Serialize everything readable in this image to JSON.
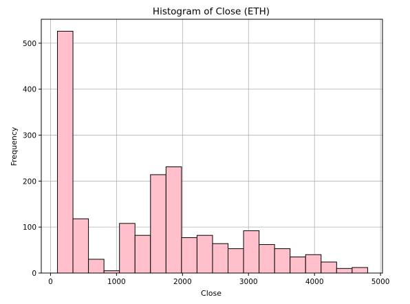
{
  "chart_data": {
    "type": "bar",
    "subtype": "histogram",
    "title": "Histogram of Close (ETH)",
    "xlabel": "Close",
    "ylabel": "Frequency",
    "xlim": [
      -140,
      5030
    ],
    "ylim": [
      0,
      552
    ],
    "xticks": [
      0,
      1000,
      2000,
      3000,
      4000,
      5000
    ],
    "yticks": [
      0,
      100,
      200,
      300,
      400,
      500
    ],
    "grid": true,
    "bar_color": "#ffc0cb",
    "edge_color": "#000000",
    "bins": [
      {
        "x0": 105,
        "x1": 340,
        "value": 526
      },
      {
        "x0": 340,
        "x1": 575,
        "value": 118
      },
      {
        "x0": 575,
        "x1": 810,
        "value": 30
      },
      {
        "x0": 810,
        "x1": 1045,
        "value": 5
      },
      {
        "x0": 1045,
        "x1": 1280,
        "value": 108
      },
      {
        "x0": 1280,
        "x1": 1515,
        "value": 82
      },
      {
        "x0": 1515,
        "x1": 1750,
        "value": 214
      },
      {
        "x0": 1750,
        "x1": 1985,
        "value": 231
      },
      {
        "x0": 1985,
        "x1": 2220,
        "value": 77
      },
      {
        "x0": 2220,
        "x1": 2455,
        "value": 82
      },
      {
        "x0": 2455,
        "x1": 2690,
        "value": 64
      },
      {
        "x0": 2690,
        "x1": 2925,
        "value": 53
      },
      {
        "x0": 2925,
        "x1": 3160,
        "value": 92
      },
      {
        "x0": 3160,
        "x1": 3395,
        "value": 62
      },
      {
        "x0": 3395,
        "x1": 3630,
        "value": 53
      },
      {
        "x0": 3630,
        "x1": 3865,
        "value": 35
      },
      {
        "x0": 3865,
        "x1": 4100,
        "value": 40
      },
      {
        "x0": 4100,
        "x1": 4335,
        "value": 24
      },
      {
        "x0": 4335,
        "x1": 4570,
        "value": 10
      },
      {
        "x0": 4570,
        "x1": 4805,
        "value": 12
      }
    ]
  }
}
